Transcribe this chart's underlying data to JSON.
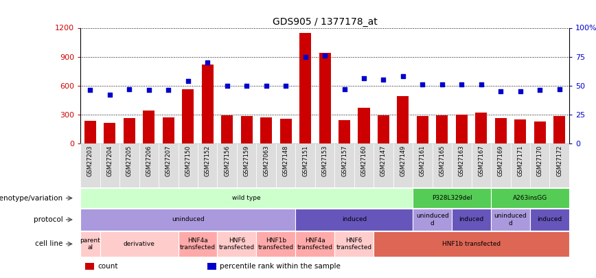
{
  "title": "GDS905 / 1377178_at",
  "samples": [
    "GSM27203",
    "GSM27204",
    "GSM27205",
    "GSM27206",
    "GSM27207",
    "GSM27150",
    "GSM27152",
    "GSM27156",
    "GSM27159",
    "GSM27063",
    "GSM27148",
    "GSM27151",
    "GSM27153",
    "GSM27157",
    "GSM27160",
    "GSM27147",
    "GSM27149",
    "GSM27161",
    "GSM27165",
    "GSM27163",
    "GSM27167",
    "GSM27169",
    "GSM27171",
    "GSM27170",
    "GSM27172"
  ],
  "counts": [
    230,
    210,
    260,
    340,
    270,
    560,
    820,
    290,
    280,
    265,
    255,
    1150,
    940,
    240,
    370,
    290,
    490,
    285,
    290,
    295,
    315,
    260,
    245,
    225,
    280
  ],
  "percentiles": [
    46,
    42,
    47,
    46,
    46,
    54,
    70,
    50,
    50,
    50,
    50,
    75,
    76,
    47,
    56,
    55,
    58,
    51,
    51,
    51,
    51,
    45,
    45,
    46,
    47
  ],
  "ylim_left": [
    0,
    1200
  ],
  "ylim_right": [
    0,
    100
  ],
  "yticks_left": [
    0,
    300,
    600,
    900,
    1200
  ],
  "yticks_right": [
    0,
    25,
    50,
    75,
    100
  ],
  "bar_color": "#cc0000",
  "dot_color": "#0000cc",
  "background_color": "#ffffff",
  "xtick_bg": "#dddddd",
  "genotype_row": {
    "label": "genotype/variation",
    "segments": [
      {
        "text": "wild type",
        "start": 0,
        "end": 17,
        "color": "#ccffcc"
      },
      {
        "text": "P328L329del",
        "start": 17,
        "end": 21,
        "color": "#55cc55"
      },
      {
        "text": "A263insGG",
        "start": 21,
        "end": 25,
        "color": "#55cc55"
      }
    ]
  },
  "protocol_row": {
    "label": "protocol",
    "segments": [
      {
        "text": "uninduced",
        "start": 0,
        "end": 11,
        "color": "#aa99dd"
      },
      {
        "text": "induced",
        "start": 11,
        "end": 17,
        "color": "#6655bb"
      },
      {
        "text": "uninduced\nd",
        "start": 17,
        "end": 19,
        "color": "#aa99dd"
      },
      {
        "text": "induced",
        "start": 19,
        "end": 21,
        "color": "#6655bb"
      },
      {
        "text": "uninduced\nd",
        "start": 21,
        "end": 23,
        "color": "#aa99dd"
      },
      {
        "text": "induced",
        "start": 23,
        "end": 25,
        "color": "#6655bb"
      }
    ]
  },
  "cellline_row": {
    "label": "cell line",
    "segments": [
      {
        "text": "parent\nal",
        "start": 0,
        "end": 1,
        "color": "#ffcccc"
      },
      {
        "text": "derivative",
        "start": 1,
        "end": 5,
        "color": "#ffcccc"
      },
      {
        "text": "HNF4a\ntransfected",
        "start": 5,
        "end": 7,
        "color": "#ffaaaa"
      },
      {
        "text": "HNF6\ntransfected",
        "start": 7,
        "end": 9,
        "color": "#ffcccc"
      },
      {
        "text": "HNF1b\ntransfected",
        "start": 9,
        "end": 11,
        "color": "#ffaaaa"
      },
      {
        "text": "HNF4a\ntransfected",
        "start": 11,
        "end": 13,
        "color": "#ffaaaa"
      },
      {
        "text": "HNF6\ntransfected",
        "start": 13,
        "end": 15,
        "color": "#ffcccc"
      },
      {
        "text": "HNF1b transfected",
        "start": 15,
        "end": 25,
        "color": "#dd6655"
      }
    ]
  },
  "legend": [
    {
      "color": "#cc0000",
      "label": "count"
    },
    {
      "color": "#0000cc",
      "label": "percentile rank within the sample"
    }
  ]
}
